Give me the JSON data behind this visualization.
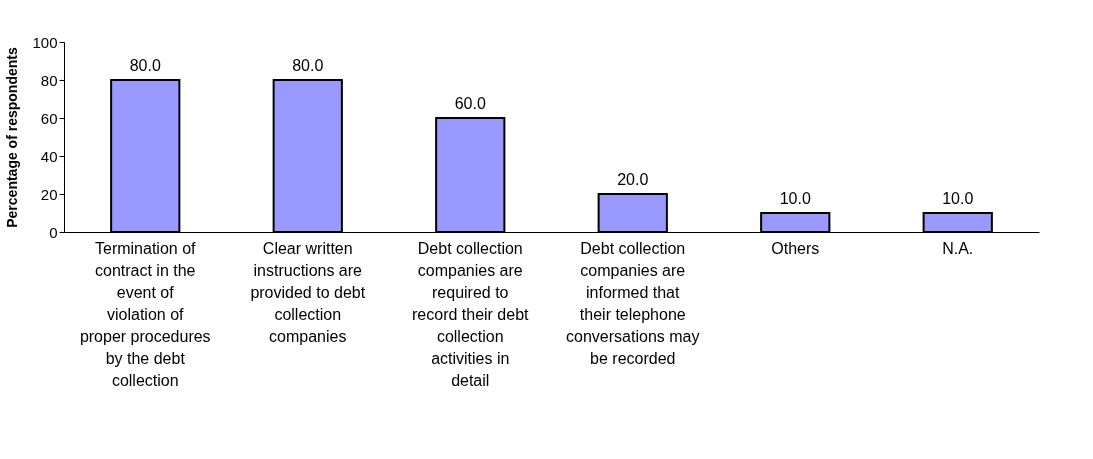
{
  "chart_data": {
    "type": "bar",
    "ylabel": "Percentage of respondents",
    "categories": [
      "Termination of contract in the event of violation of proper procedures by the debt collection",
      "Clear written instructions are provided to debt collection companies",
      "Debt collection companies are required to record their debt collection activities in detail",
      "Debt collection companies are informed that their telephone conversations may be recorded",
      "Others",
      "N.A."
    ],
    "values": [
      80,
      80,
      60,
      20,
      10,
      10
    ],
    "value_labels": [
      "80.0",
      "80.0",
      "60.0",
      "20.0",
      "10.0",
      "10.0"
    ],
    "color": "#9999ff",
    "ylim": [
      0,
      100
    ],
    "yticks": [
      0,
      20,
      40,
      60,
      80,
      100
    ],
    "grid": false
  }
}
